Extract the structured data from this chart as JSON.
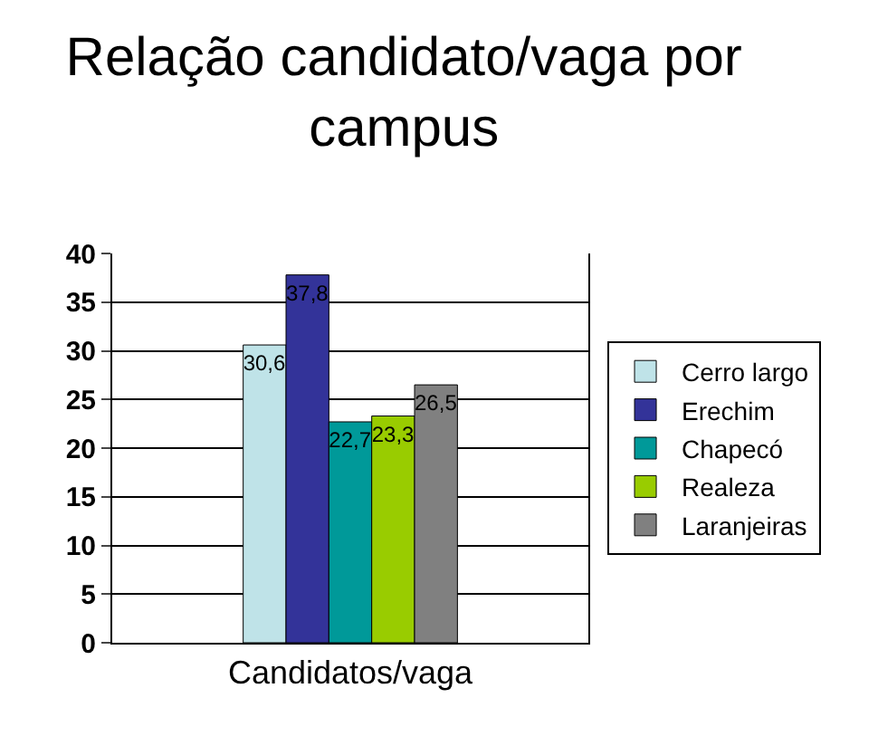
{
  "chart_data": {
    "type": "bar",
    "title": "Relação candidato/vaga por campus",
    "categories": [
      "Candidatos/vaga"
    ],
    "series": [
      {
        "name": "Cerro largo",
        "color": "#bfe3e8",
        "values": [
          30.6
        ],
        "value_labels": [
          "30,6"
        ]
      },
      {
        "name": "Erechim",
        "color": "#333399",
        "values": [
          37.8
        ],
        "value_labels": [
          "37,8"
        ]
      },
      {
        "name": "Chapecó",
        "color": "#009999",
        "values": [
          22.7
        ],
        "value_labels": [
          "22,7"
        ]
      },
      {
        "name": "Realeza",
        "color": "#99cc00",
        "values": [
          23.3
        ],
        "value_labels": [
          "23,3"
        ]
      },
      {
        "name": "Laranjeiras",
        "color": "#808080",
        "values": [
          26.5
        ],
        "value_labels": [
          "26,5"
        ]
      }
    ],
    "ylim": [
      0,
      40
    ],
    "yticks": [
      0,
      5,
      10,
      15,
      20,
      25,
      30,
      35,
      40
    ],
    "grid": "y",
    "legend": "right"
  }
}
